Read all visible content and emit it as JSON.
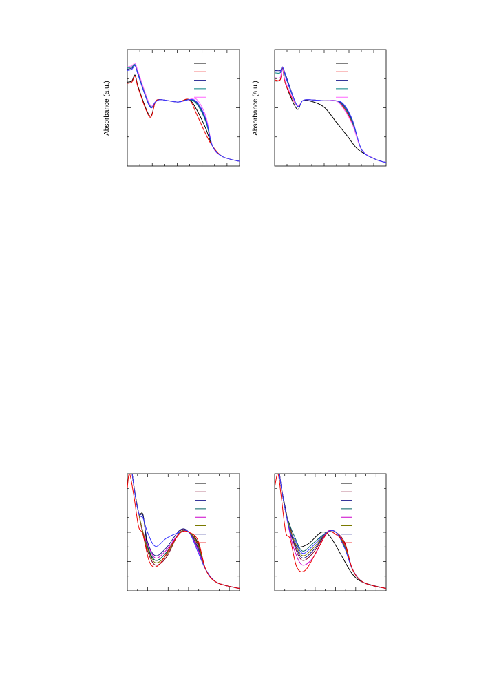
{
  "panels": [
    {
      "ylabel": "Absorbance (a.u.)"
    },
    {
      "ylabel": "Absorbance (a.u.)"
    }
  ]
}
